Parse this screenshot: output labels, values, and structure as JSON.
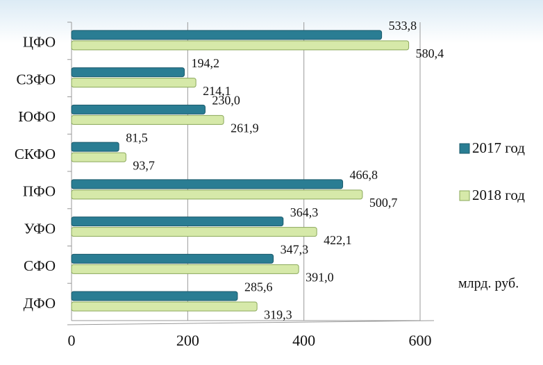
{
  "chart_data": {
    "type": "bar",
    "orientation": "horizontal",
    "categories": [
      "ЦФО",
      "СЗФО",
      "ЮФО",
      "СКФО",
      "ПФО",
      "УФО",
      "СФО",
      "ДФО"
    ],
    "series": [
      {
        "name": "2017 год",
        "color": "#2a7d93",
        "values": [
          533.8,
          194.2,
          230.0,
          81.5,
          466.8,
          364.3,
          347.3,
          285.6
        ],
        "value_labels": [
          "533,8",
          "194,2",
          "230,0",
          "81,5",
          "466,8",
          "364,3",
          "347,3",
          "285,6"
        ]
      },
      {
        "name": "2018 год",
        "color": "#d6e9a9",
        "values": [
          580.4,
          214.1,
          261.9,
          93.7,
          500.7,
          422.1,
          391.0,
          319.3
        ],
        "value_labels": [
          "580,4",
          "214,1",
          "261,9",
          "93,7",
          "500,7",
          "422,1",
          "391,0",
          "319,3"
        ]
      }
    ],
    "xlim": [
      0,
      600
    ],
    "xticks": [
      0,
      200,
      400,
      600
    ],
    "grid": true,
    "legend": "right",
    "unit_note": "млрд. руб."
  }
}
